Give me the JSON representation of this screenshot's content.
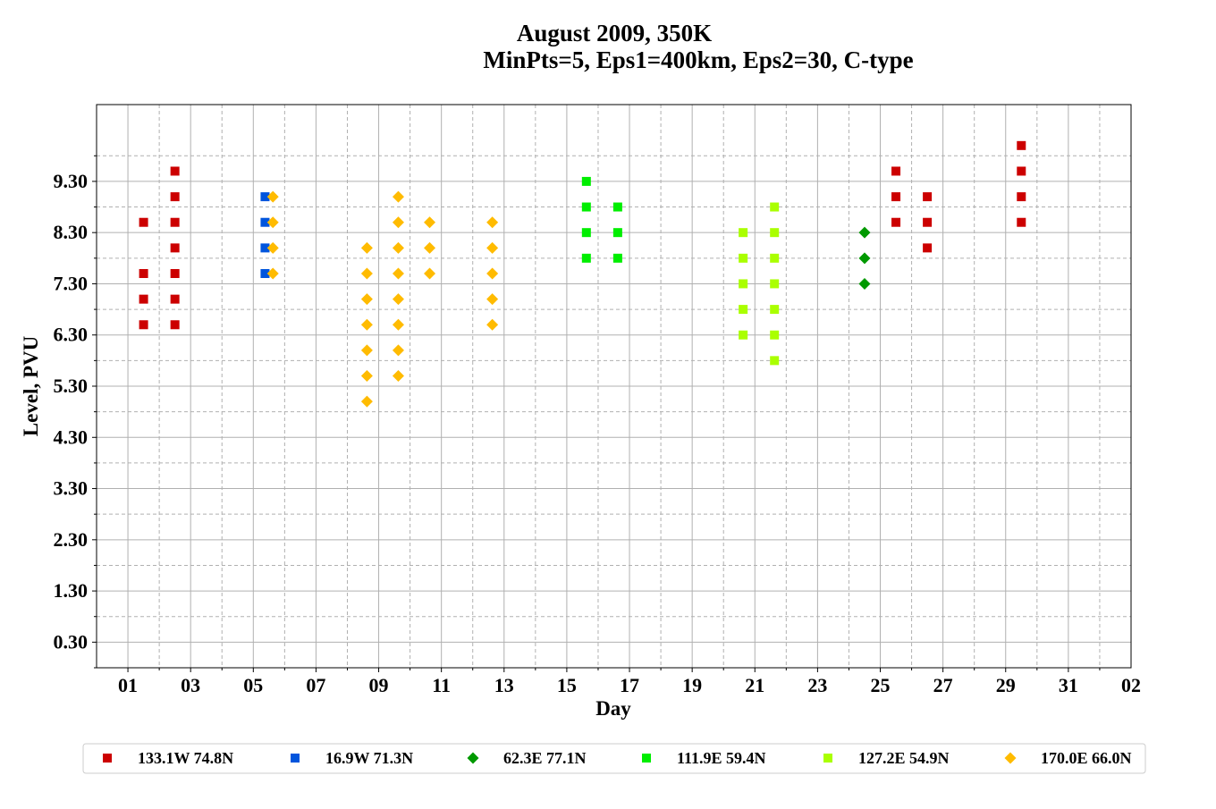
{
  "chart_data": {
    "type": "scatter",
    "title": "August 2009, 350K",
    "subtitle": "MinPts=5, Eps1=400km, Eps2=30, C-type",
    "xlabel": "Day",
    "ylabel": "Level, PVU",
    "x_tick_labels": [
      "01",
      "03",
      "05",
      "07",
      "09",
      "11",
      "13",
      "15",
      "17",
      "19",
      "21",
      "23",
      "25",
      "27",
      "29",
      "31",
      "02"
    ],
    "y_tick_labels": [
      "0.30",
      "1.30",
      "2.30",
      "3.30",
      "4.30",
      "5.30",
      "6.30",
      "7.30",
      "8.30",
      "9.30"
    ],
    "x_range": [
      "2009-07-31",
      "2009-09-02"
    ],
    "ylim": [
      -0.2,
      10.8
    ],
    "grid": true,
    "legend_position": "bottom",
    "series": [
      {
        "name": "133.1W 74.8N",
        "marker": "square",
        "color": "#cc0000",
        "points": [
          [
            "2009-08-01T12:00",
            6.5
          ],
          [
            "2009-08-01T12:00",
            7.0
          ],
          [
            "2009-08-01T12:00",
            7.5
          ],
          [
            "2009-08-01T12:00",
            8.5
          ],
          [
            "2009-08-02T12:00",
            6.5
          ],
          [
            "2009-08-02T12:00",
            7.0
          ],
          [
            "2009-08-02T12:00",
            7.5
          ],
          [
            "2009-08-02T12:00",
            8.0
          ],
          [
            "2009-08-02T12:00",
            8.5
          ],
          [
            "2009-08-02T12:00",
            9.0
          ],
          [
            "2009-08-02T12:00",
            9.5
          ],
          [
            "2009-08-25T12:00",
            8.5
          ],
          [
            "2009-08-25T12:00",
            9.0
          ],
          [
            "2009-08-25T12:00",
            9.5
          ],
          [
            "2009-08-26T12:00",
            8.0
          ],
          [
            "2009-08-26T12:00",
            8.5
          ],
          [
            "2009-08-26T12:00",
            9.0
          ],
          [
            "2009-08-29T12:00",
            8.5
          ],
          [
            "2009-08-29T12:00",
            9.0
          ],
          [
            "2009-08-29T12:00",
            9.5
          ],
          [
            "2009-08-29T12:00",
            10.0
          ]
        ]
      },
      {
        "name": "16.9W 71.3N",
        "marker": "square",
        "color": "#0055dd",
        "points": [
          [
            "2009-08-05T09:00",
            7.5
          ],
          [
            "2009-08-05T09:00",
            8.0
          ],
          [
            "2009-08-05T09:00",
            8.5
          ],
          [
            "2009-08-05T09:00",
            9.0
          ]
        ]
      },
      {
        "name": "62.3E 77.1N",
        "marker": "diamond",
        "color": "#009900",
        "points": [
          [
            "2009-08-24T12:00",
            7.3
          ],
          [
            "2009-08-24T12:00",
            7.8
          ],
          [
            "2009-08-24T12:00",
            8.3
          ]
        ]
      },
      {
        "name": "111.9E 59.4N",
        "marker": "square",
        "color": "#00ee00",
        "points": [
          [
            "2009-08-15T15:00",
            7.8
          ],
          [
            "2009-08-15T15:00",
            8.3
          ],
          [
            "2009-08-15T15:00",
            8.8
          ],
          [
            "2009-08-15T15:00",
            9.3
          ],
          [
            "2009-08-16T15:00",
            7.8
          ],
          [
            "2009-08-16T15:00",
            8.3
          ],
          [
            "2009-08-16T15:00",
            8.8
          ]
        ]
      },
      {
        "name": "127.2E 54.9N",
        "marker": "square",
        "color": "#aaff00",
        "points": [
          [
            "2009-08-20T15:00",
            6.3
          ],
          [
            "2009-08-20T15:00",
            6.8
          ],
          [
            "2009-08-20T15:00",
            7.3
          ],
          [
            "2009-08-20T15:00",
            7.8
          ],
          [
            "2009-08-20T15:00",
            8.3
          ],
          [
            "2009-08-21T15:00",
            5.8
          ],
          [
            "2009-08-21T15:00",
            6.3
          ],
          [
            "2009-08-21T15:00",
            6.8
          ],
          [
            "2009-08-21T15:00",
            7.3
          ],
          [
            "2009-08-21T15:00",
            7.8
          ],
          [
            "2009-08-21T15:00",
            8.3
          ],
          [
            "2009-08-21T15:00",
            8.8
          ]
        ]
      },
      {
        "name": "170.0E 66.0N",
        "marker": "diamond",
        "color": "#ffbb00",
        "points": [
          [
            "2009-08-05T15:00",
            7.5
          ],
          [
            "2009-08-05T15:00",
            8.0
          ],
          [
            "2009-08-05T15:00",
            8.5
          ],
          [
            "2009-08-05T15:00",
            9.0
          ],
          [
            "2009-08-08T15:00",
            5.0
          ],
          [
            "2009-08-08T15:00",
            5.5
          ],
          [
            "2009-08-08T15:00",
            6.0
          ],
          [
            "2009-08-08T15:00",
            6.5
          ],
          [
            "2009-08-08T15:00",
            7.0
          ],
          [
            "2009-08-08T15:00",
            7.5
          ],
          [
            "2009-08-08T15:00",
            8.0
          ],
          [
            "2009-08-09T15:00",
            5.5
          ],
          [
            "2009-08-09T15:00",
            6.0
          ],
          [
            "2009-08-09T15:00",
            6.5
          ],
          [
            "2009-08-09T15:00",
            7.0
          ],
          [
            "2009-08-09T15:00",
            7.5
          ],
          [
            "2009-08-09T15:00",
            8.0
          ],
          [
            "2009-08-09T15:00",
            8.5
          ],
          [
            "2009-08-09T15:00",
            9.0
          ],
          [
            "2009-08-10T15:00",
            7.5
          ],
          [
            "2009-08-10T15:00",
            8.0
          ],
          [
            "2009-08-10T15:00",
            8.5
          ],
          [
            "2009-08-12T15:00",
            6.5
          ],
          [
            "2009-08-12T15:00",
            7.0
          ],
          [
            "2009-08-12T15:00",
            7.5
          ],
          [
            "2009-08-12T15:00",
            8.0
          ],
          [
            "2009-08-12T15:00",
            8.5
          ]
        ]
      }
    ]
  }
}
